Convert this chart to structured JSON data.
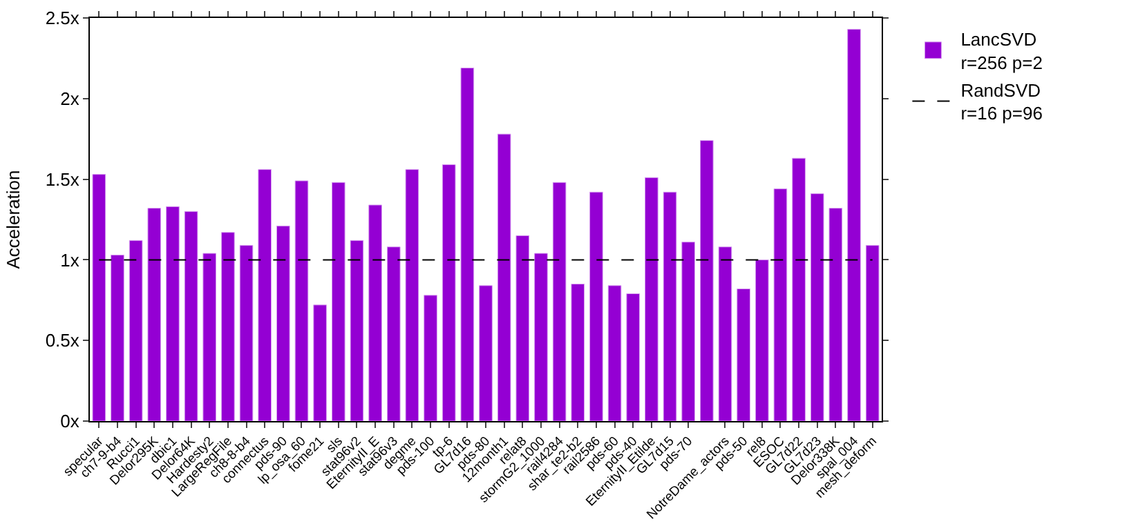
{
  "chart_data": {
    "type": "bar",
    "ylabel": "Acceleration",
    "categories": [
      "specular",
      "ch7-9-b4",
      "Rucci1",
      "Delor295K",
      "dbic1",
      "Delor64K",
      "Hardesty2",
      "LargeRegFile",
      "ch8-8-b4",
      "connectus",
      "pds-90",
      "lp_osa_60",
      "fome21",
      "sls",
      "stat96v2",
      "EternityII_E",
      "stat96v3",
      "degme",
      "pds-100",
      "tp-6",
      "GL7d16",
      "pds-80",
      "12month1",
      "relat8",
      "stormG2_1000",
      "rail4284",
      "shar_te2-b2",
      "rail2586",
      "pds-60",
      "pds-40",
      "EternityII_Etilde",
      "GL7d15",
      "pds-70",
      null,
      "NotreDame_actors",
      "pds-50",
      "rel8",
      "ESOC",
      "GL7d22",
      "GL7d23",
      "Delor338K",
      "spal_004",
      "mesh_deform"
    ],
    "series": [
      {
        "name": "LancSVD\nr=256 p=2",
        "color": "#9400d3",
        "values": [
          1.53,
          1.03,
          1.12,
          1.32,
          1.33,
          1.3,
          1.04,
          1.17,
          1.09,
          1.56,
          1.21,
          1.49,
          0.72,
          1.48,
          1.12,
          1.34,
          1.08,
          1.56,
          0.78,
          1.59,
          2.19,
          0.84,
          1.78,
          1.15,
          1.04,
          1.48,
          0.85,
          1.42,
          0.84,
          0.79,
          1.51,
          1.42,
          1.11,
          1.74,
          1.08,
          0.82,
          1.0,
          1.44,
          1.63,
          1.41,
          1.32,
          2.43,
          1.09
        ]
      },
      {
        "type": "line",
        "name": "RandSVD\nr=16 p=96",
        "color": "#000000",
        "line_style": "dashed",
        "values": [
          1,
          1,
          1,
          1,
          1,
          1,
          1,
          1,
          1,
          1,
          1,
          1,
          1,
          1,
          1,
          1,
          1,
          1,
          1,
          1,
          1,
          1,
          1,
          1,
          1,
          1,
          1,
          1,
          1,
          1,
          1,
          1,
          1,
          1,
          1,
          1,
          1,
          1,
          1,
          1,
          1,
          1,
          1
        ]
      }
    ],
    "ylim": [
      0,
      2.5
    ],
    "yticks": [
      {
        "value": 0,
        "label": "0x"
      },
      {
        "value": 0.5,
        "label": "0.5x"
      },
      {
        "value": 1,
        "label": "1x"
      },
      {
        "value": 1.5,
        "label": "1.5x"
      },
      {
        "value": 2,
        "label": "2x"
      },
      {
        "value": 2.5,
        "label": "2.5x"
      }
    ],
    "legend": "top right"
  }
}
